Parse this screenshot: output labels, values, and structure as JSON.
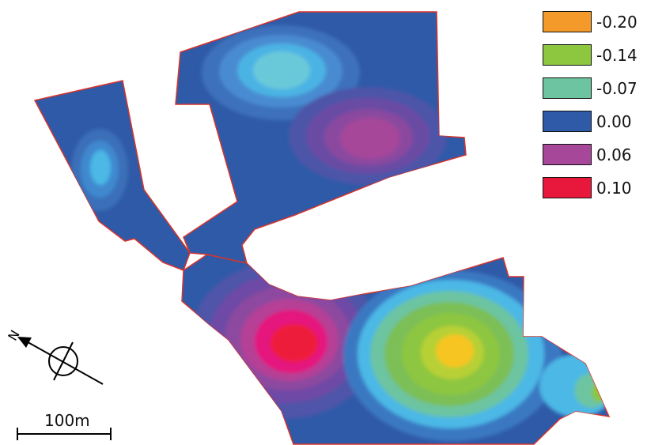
{
  "legend": {
    "items": [
      {
        "label": "-0.20",
        "color": "#f39a2a"
      },
      {
        "label": "-0.14",
        "color": "#8dc63f"
      },
      {
        "label": "-0.07",
        "color": "#6cc4a1"
      },
      {
        "label": "0.00",
        "color": "#2f5aa8"
      },
      {
        "label": "0.06",
        "color": "#a6479a"
      },
      {
        "label": "0.10",
        "color": "#e8173c"
      }
    ]
  },
  "compass": {
    "label": "N"
  },
  "scale_bar": {
    "label": "100m"
  },
  "colors": {
    "base": "#2f5aa8",
    "outline": "#d8342c",
    "cyan": "#4bb8e6",
    "magenta": "#e5177d",
    "red": "#ee1f3b",
    "green": "#8dc63f",
    "yellow": "#f7c520"
  }
}
